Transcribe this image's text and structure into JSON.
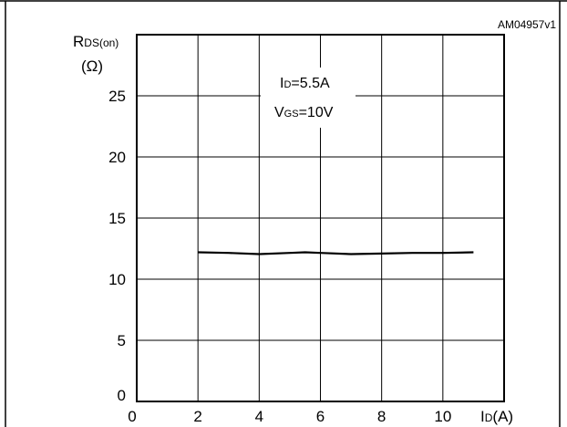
{
  "figure_ref": "AM04957v1",
  "chart_data": {
    "type": "line",
    "title": "",
    "ylabel": {
      "main": "R",
      "sub": "DS(on)",
      "unit": "(Ω)"
    },
    "xlabel": {
      "main": "I",
      "sub": "D",
      "unit": "(A)"
    },
    "xlim": [
      0,
      12
    ],
    "ylim": [
      0,
      30
    ],
    "xticks": [
      0,
      2,
      4,
      6,
      8,
      10
    ],
    "yticks": [
      0,
      5,
      10,
      15,
      20,
      25
    ],
    "grid": true,
    "annotations": [
      {
        "main": "I",
        "sub": "D",
        "rest": "=5.5A"
      },
      {
        "main": "V",
        "sub": "GS",
        "rest": "=10V"
      }
    ],
    "series": [
      {
        "x": [
          2,
          3,
          4,
          5,
          5.5,
          6,
          7,
          8,
          9,
          10,
          11
        ],
        "y": [
          12.2,
          12.15,
          12.05,
          12.15,
          12.2,
          12.15,
          12.05,
          12.1,
          12.15,
          12.15,
          12.2
        ],
        "color": "#000000"
      }
    ]
  }
}
